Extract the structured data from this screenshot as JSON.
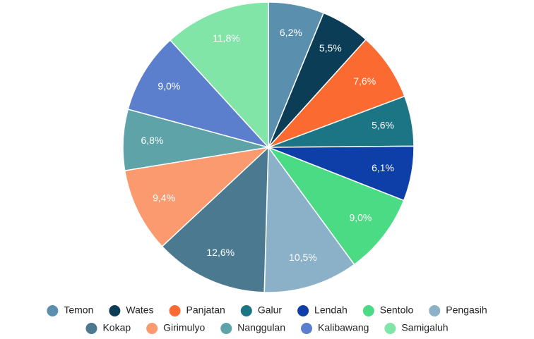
{
  "chart_data": {
    "type": "pie",
    "categories": [
      "Temon",
      "Wates",
      "Panjatan",
      "Galur",
      "Lendah",
      "Sentolo",
      "Pengasih",
      "Kokap",
      "Girimulyo",
      "Nanggulan",
      "Kalibawang",
      "Samigaluh"
    ],
    "values": [
      6.2,
      5.5,
      7.6,
      5.6,
      6.1,
      9.0,
      10.5,
      12.6,
      9.4,
      6.8,
      9.0,
      11.8
    ],
    "value_labels": [
      "6,2%",
      "5,5%",
      "7,6%",
      "5,6%",
      "6,1%",
      "9,0%",
      "10,5%",
      "12,6%",
      "9,4%",
      "6,8%",
      "9,0%",
      "11,8%"
    ],
    "colors": [
      "#5b8fae",
      "#0b3d56",
      "#fb6a30",
      "#1b7584",
      "#0e3fa8",
      "#4bdb85",
      "#8ab1c8",
      "#4b7a90",
      "#fb9a6f",
      "#5ea3a8",
      "#5b7fcc",
      "#81e5a8"
    ],
    "legend": "bottom"
  }
}
